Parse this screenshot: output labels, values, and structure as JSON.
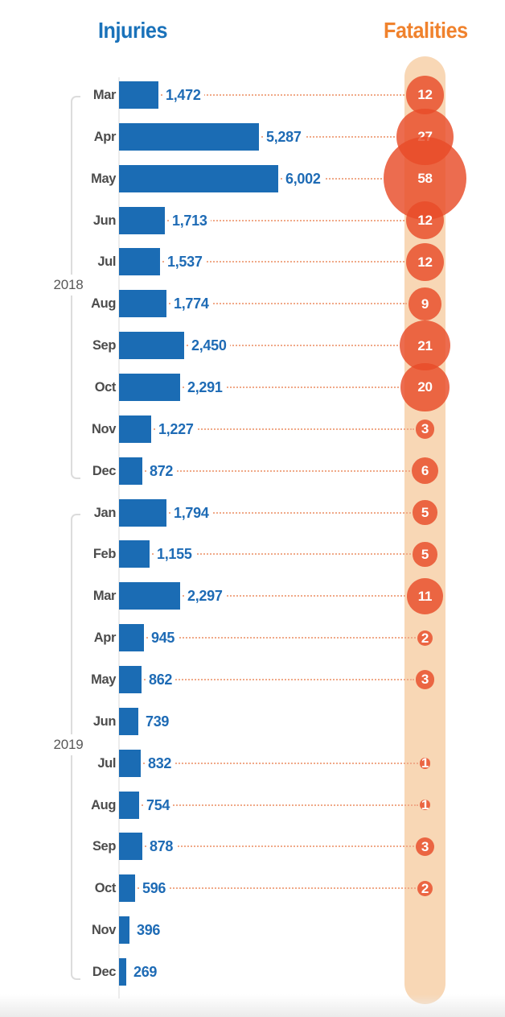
{
  "header": {
    "injuries_title": "Injuries",
    "fatalities_title": "Fatalities"
  },
  "colors": {
    "bar_blue": "#1b6cb4",
    "value_text_blue": "#1e6bb5",
    "title_blue": "#1a72ba",
    "title_orange": "#f0822d",
    "bubble_red": "#e84c28",
    "band_peach": "#f8d7b5",
    "dotted_line": "#f0a988",
    "month_label_gray": "#4c4c4c",
    "year_label_gray": "#585858",
    "bracket_gray": "#dcdcdc"
  },
  "chart_data": {
    "type": "bar",
    "subtype": "horizontal-bars-with-bubble-column",
    "title": "",
    "xlabel": "",
    "ylabel": "",
    "xlim": [
      0,
      6002
    ],
    "legend_position": "top",
    "grid": false,
    "series": [
      {
        "name": "Injuries",
        "type": "bar",
        "color": "#1b6cb4"
      },
      {
        "name": "Fatalities",
        "type": "bubble",
        "color": "#e84c28"
      }
    ],
    "groups": [
      {
        "year": "2018",
        "rows": [
          {
            "month": "Mar",
            "injuries": 1472,
            "fatalities": 12
          },
          {
            "month": "Apr",
            "injuries": 5287,
            "fatalities": 27
          },
          {
            "month": "May",
            "injuries": 6002,
            "fatalities": 58
          },
          {
            "month": "Jun",
            "injuries": 1713,
            "fatalities": 12
          },
          {
            "month": "Jul",
            "injuries": 1537,
            "fatalities": 12
          },
          {
            "month": "Aug",
            "injuries": 1774,
            "fatalities": 9
          },
          {
            "month": "Sep",
            "injuries": 2450,
            "fatalities": 21
          },
          {
            "month": "Oct",
            "injuries": 2291,
            "fatalities": 20
          },
          {
            "month": "Nov",
            "injuries": 1227,
            "fatalities": 3
          },
          {
            "month": "Dec",
            "injuries": 872,
            "fatalities": 6
          }
        ]
      },
      {
        "year": "2019",
        "rows": [
          {
            "month": "Jan",
            "injuries": 1794,
            "fatalities": 5
          },
          {
            "month": "Feb",
            "injuries": 1155,
            "fatalities": 5
          },
          {
            "month": "Mar",
            "injuries": 2297,
            "fatalities": 11
          },
          {
            "month": "Apr",
            "injuries": 945,
            "fatalities": 2
          },
          {
            "month": "May",
            "injuries": 862,
            "fatalities": 3
          },
          {
            "month": "Jun",
            "injuries": 739,
            "fatalities": null
          },
          {
            "month": "Jul",
            "injuries": 832,
            "fatalities": 1
          },
          {
            "month": "Aug",
            "injuries": 754,
            "fatalities": 1
          },
          {
            "month": "Sep",
            "injuries": 878,
            "fatalities": 3
          },
          {
            "month": "Oct",
            "injuries": 596,
            "fatalities": 2
          },
          {
            "month": "Nov",
            "injuries": 396,
            "fatalities": null
          },
          {
            "month": "Dec",
            "injuries": 269,
            "fatalities": null
          }
        ]
      }
    ]
  }
}
